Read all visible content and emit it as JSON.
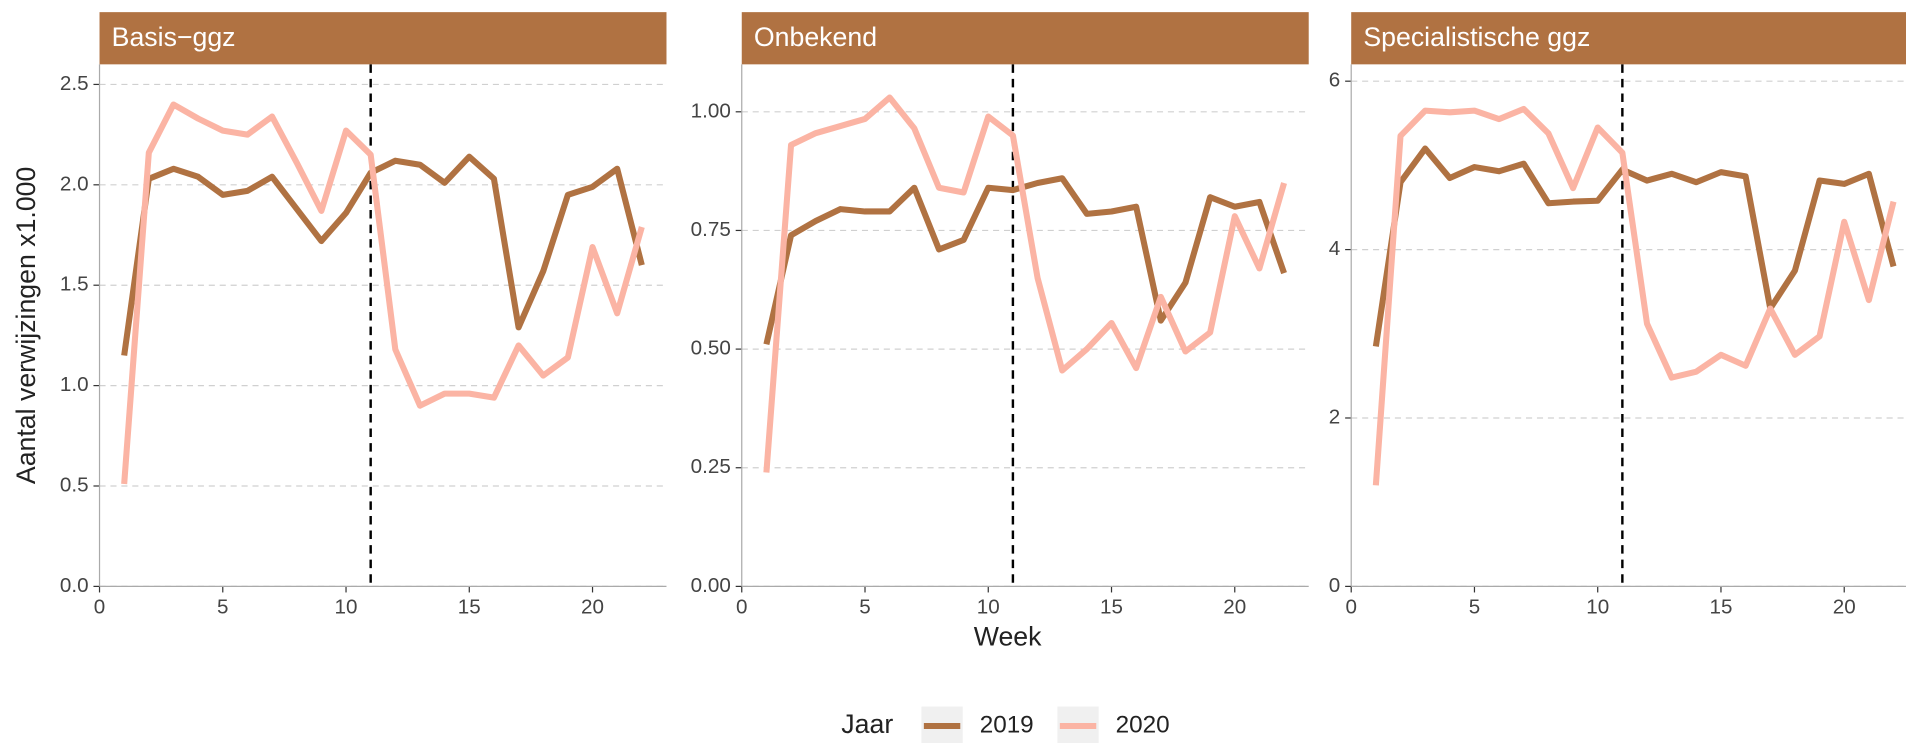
{
  "y_label": "Aantal verwijzingen x1.000",
  "x_label": "Week",
  "legend_title": "Jaar",
  "chart_data": [
    {
      "type": "line",
      "title": "Basis−ggz",
      "x": [
        1,
        2,
        3,
        4,
        5,
        6,
        7,
        8,
        9,
        10,
        11,
        12,
        13,
        14,
        15,
        16,
        17,
        18,
        19,
        20,
        21,
        22
      ],
      "series": [
        {
          "name": "2019",
          "color": "#b07242",
          "values": [
            1.15,
            2.03,
            2.08,
            2.04,
            1.95,
            1.97,
            2.04,
            1.88,
            1.72,
            1.86,
            2.06,
            2.12,
            2.1,
            2.01,
            2.14,
            2.03,
            1.29,
            1.57,
            1.95,
            1.99,
            2.08,
            1.6
          ]
        },
        {
          "name": "2020",
          "color": "#fbb4a4",
          "values": [
            0.51,
            2.16,
            2.4,
            2.33,
            2.27,
            2.25,
            2.34,
            2.11,
            1.87,
            2.27,
            2.15,
            1.18,
            0.9,
            0.96,
            0.96,
            0.94,
            1.2,
            1.05,
            1.14,
            1.69,
            1.36,
            1.79
          ]
        }
      ],
      "xlim": [
        0,
        23
      ],
      "xticks": [
        0,
        5,
        10,
        15,
        20
      ],
      "ylim": [
        0,
        2.6
      ],
      "yticks": [
        {
          "value": 0,
          "label": "0.0"
        },
        0.5,
        {
          "value": 1,
          "label": "1.0"
        },
        1.5,
        {
          "value": 2,
          "label": "2.0"
        },
        2.5
      ],
      "vline": 11,
      "grid": true
    },
    {
      "type": "line",
      "title": "Onbekend",
      "x": [
        1,
        2,
        3,
        4,
        5,
        6,
        7,
        8,
        9,
        10,
        11,
        12,
        13,
        14,
        15,
        16,
        17,
        18,
        19,
        20,
        21,
        22
      ],
      "series": [
        {
          "name": "2019",
          "color": "#b07242",
          "values": [
            0.51,
            0.74,
            0.77,
            0.795,
            0.79,
            0.79,
            0.84,
            0.71,
            0.73,
            0.84,
            0.835,
            0.85,
            0.86,
            0.785,
            0.79,
            0.8,
            0.56,
            0.64,
            0.82,
            0.8,
            0.81,
            0.66
          ]
        },
        {
          "name": "2020",
          "color": "#fbb4a4",
          "values": [
            0.24,
            0.93,
            0.955,
            0.97,
            0.985,
            1.03,
            0.965,
            0.84,
            0.83,
            0.99,
            0.95,
            0.65,
            0.455,
            0.5,
            0.555,
            0.46,
            0.61,
            0.495,
            0.535,
            0.78,
            0.67,
            0.85
          ]
        }
      ],
      "xlim": [
        0,
        23
      ],
      "xticks": [
        0,
        5,
        10,
        15,
        20
      ],
      "ylim": [
        0,
        1.1
      ],
      "yticks": [
        {
          "value": 0,
          "label": "0.00"
        },
        0.25,
        {
          "value": 0.5,
          "label": "0.50"
        },
        0.75,
        {
          "value": 1,
          "label": "1.00"
        }
      ],
      "vline": 11,
      "grid": true
    },
    {
      "type": "line",
      "title": "Specialistische ggz",
      "x": [
        1,
        2,
        3,
        4,
        5,
        6,
        7,
        8,
        9,
        10,
        11,
        12,
        13,
        14,
        15,
        16,
        17,
        18,
        19,
        20,
        21,
        22
      ],
      "series": [
        {
          "name": "2019",
          "color": "#b07242",
          "values": [
            2.85,
            4.8,
            5.2,
            4.85,
            4.98,
            4.93,
            5.02,
            4.55,
            4.57,
            4.58,
            4.95,
            4.82,
            4.9,
            4.8,
            4.92,
            4.87,
            3.3,
            3.75,
            4.82,
            4.78,
            4.9,
            3.8
          ]
        },
        {
          "name": "2020",
          "color": "#fbb4a4",
          "values": [
            1.2,
            5.35,
            5.65,
            5.63,
            5.65,
            5.55,
            5.67,
            5.38,
            4.73,
            5.45,
            5.15,
            3.12,
            2.48,
            2.55,
            2.75,
            2.62,
            3.3,
            2.75,
            2.97,
            4.33,
            3.4,
            4.57
          ]
        }
      ],
      "xlim": [
        0,
        23
      ],
      "xticks": [
        0,
        5,
        10,
        15,
        20
      ],
      "ylim": [
        0,
        6.2
      ],
      "yticks": [
        0,
        2,
        4,
        6
      ],
      "vline": 11,
      "grid": true
    }
  ]
}
